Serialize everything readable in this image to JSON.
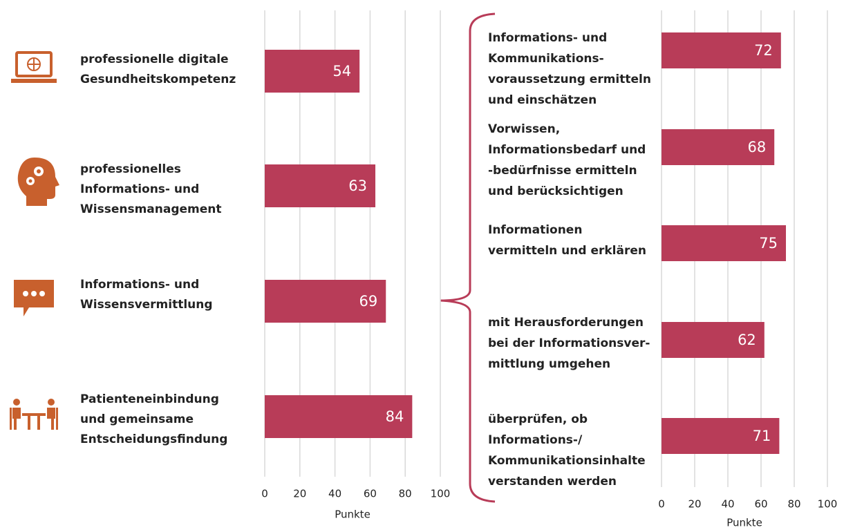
{
  "chart_data": [
    {
      "type": "bar",
      "orientation": "horizontal",
      "categories": [
        "professionelle digitale\nGesundheitskompetenz",
        "professionelles\nInformations- und\nWissensmanagement",
        "Informations- und\nWissensvermittlung",
        "Patienteneinbindung\nund gemeinsame\nEntscheidungsfindung"
      ],
      "values": [
        54,
        63,
        69,
        84
      ],
      "color": "#b83c58",
      "xlim": [
        0,
        100
      ],
      "xticks": [
        0,
        20,
        40,
        60,
        80,
        100
      ],
      "xlabel": "Punkte",
      "grid": true
    },
    {
      "type": "bar",
      "orientation": "horizontal",
      "categories": [
        "Informations- und\nKommunikations-\nvoraussetzung ermitteln\nund einschätzen",
        "Vorwissen,\nInformationsbedarf und\n-bedürfnisse ermitteln\nund berücksichtigen",
        "Informationen\nvermitteln und erklären",
        "mit Herausforderungen\nbei der Informationsver-\nmittlung umgehen",
        "überprüfen, ob\nInformations-/\nKommunikationsinhalte\nverstanden werden"
      ],
      "values": [
        72,
        68,
        75,
        62,
        71
      ],
      "color": "#b83c58",
      "xlim": [
        0,
        100
      ],
      "xticks": [
        0,
        20,
        40,
        60,
        80,
        100
      ],
      "xlabel": "Punkte",
      "grid": true
    }
  ]
}
